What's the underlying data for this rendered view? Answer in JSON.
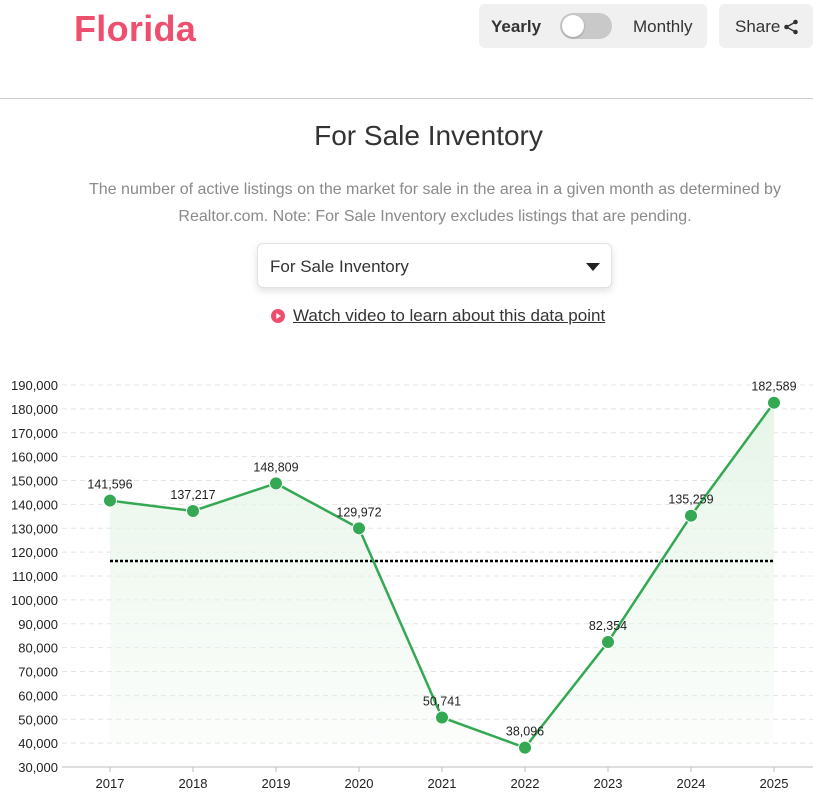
{
  "header": {
    "title": "Florida",
    "toggle": {
      "left_label": "Yearly",
      "right_label": "Monthly",
      "selected": "Yearly"
    },
    "share_label": "Share"
  },
  "section": {
    "title": "For Sale Inventory",
    "description": "The number of active listings on the market for sale in the area in a given month as determined by Realtor.com. Note: For Sale Inventory excludes listings that are pending."
  },
  "metric_select": {
    "value": "For Sale Inventory"
  },
  "video_link": {
    "text": "Watch video to learn about this data point"
  },
  "colors": {
    "brand": "#ef4f6e",
    "line": "#34a853",
    "area": "#e7f5e8",
    "average_line": "#000000"
  },
  "icons": {
    "share": "share-icon",
    "play": "play-circle-icon",
    "select_caret": "caret-down-icon"
  },
  "chart_data": {
    "type": "line",
    "categories": [
      "2017",
      "2018",
      "2019",
      "2020",
      "2021",
      "2022",
      "2023",
      "2024",
      "2025"
    ],
    "series": [
      {
        "values": [
          141596,
          137217,
          148809,
          129972,
          50741,
          38096,
          82354,
          135259,
          182589
        ],
        "labels": [
          "141,596",
          "137,217",
          "148,809",
          "129,972",
          "50,741",
          "38,096",
          "82,354",
          "135,259",
          "182,589"
        ]
      }
    ],
    "average": 116293,
    "ylim": [
      30000,
      190000
    ],
    "yticks": [
      {
        "value": 190000,
        "label": "190,000"
      },
      {
        "value": 180000,
        "label": "180,000"
      },
      {
        "value": 170000,
        "label": "170,000"
      },
      {
        "value": 160000,
        "label": "160,000"
      },
      {
        "value": 150000,
        "label": "150,000"
      },
      {
        "value": 140000,
        "label": "140,000"
      },
      {
        "value": 130000,
        "label": "130,000"
      },
      {
        "value": 120000,
        "label": "120,000"
      },
      {
        "value": 110000,
        "label": "110,000"
      },
      {
        "value": 100000,
        "label": "100,000"
      },
      {
        "value": 90000,
        "label": "90,000"
      },
      {
        "value": 80000,
        "label": "80,000"
      },
      {
        "value": 70000,
        "label": "70,000"
      },
      {
        "value": 60000,
        "label": "60,000"
      },
      {
        "value": 50000,
        "label": "50,000"
      },
      {
        "value": 40000,
        "label": "40,000"
      },
      {
        "value": 30000,
        "label": "30,000"
      }
    ],
    "grid": true,
    "area_fill": true,
    "legend": "none"
  }
}
